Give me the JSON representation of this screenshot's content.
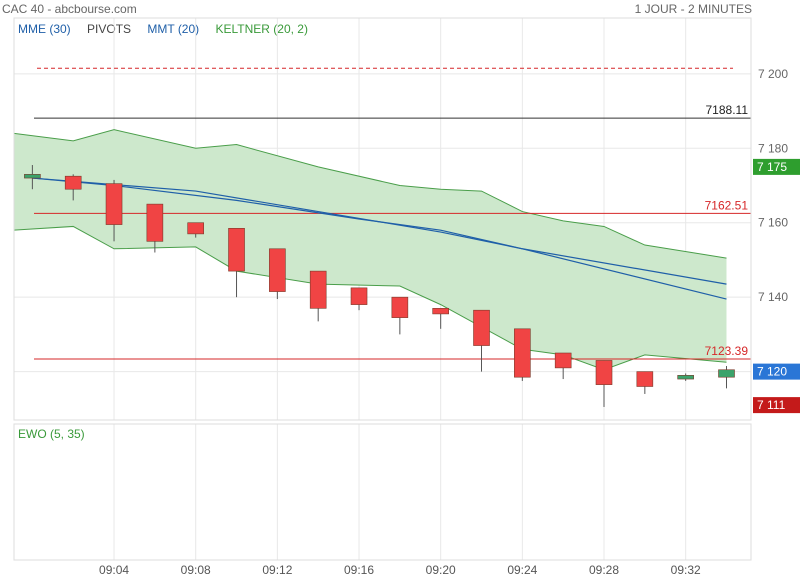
{
  "header": {
    "title": "CAC 40 - abcbourse.com",
    "period": "1 JOUR - 2 MINUTES"
  },
  "legend": [
    {
      "label": "MME (30)",
      "color": "#1f5fa8"
    },
    {
      "label": "PIVOTS",
      "color": "#444444"
    },
    {
      "label": "MMT (20)",
      "color": "#1f5fa8"
    },
    {
      "label": "KELTNER (20, 2)",
      "color": "#3a9a3a"
    }
  ],
  "indicator": {
    "label": "EWO (5, 35)",
    "color": "#3a9a3a"
  },
  "chart_data": {
    "type": "candlestick",
    "y_ticks": [
      7120,
      7140,
      7160,
      7180,
      7200
    ],
    "y_tick_labels": [
      "7 120",
      "7 140",
      "7 160",
      "7 180",
      "7 200"
    ],
    "ylim": [
      7107,
      7215
    ],
    "x_ticks": [
      "09:04",
      "09:08",
      "09:12",
      "09:16",
      "09:20",
      "09:24",
      "09:28",
      "09:32"
    ],
    "x_tick_minutes": [
      4,
      8,
      12,
      16,
      20,
      24,
      28,
      32
    ],
    "xlim_minutes": [
      -0.9,
      35.2
    ],
    "candles": [
      {
        "t": 0,
        "open": 7172.0,
        "high": 7175.5,
        "low": 7169.0,
        "close": 7173.0
      },
      {
        "t": 2,
        "open": 7172.5,
        "high": 7173.0,
        "low": 7166.0,
        "close": 7169.0
      },
      {
        "t": 4,
        "open": 7170.5,
        "high": 7171.5,
        "low": 7155.0,
        "close": 7159.5
      },
      {
        "t": 6,
        "open": 7165.0,
        "high": 7165.0,
        "low": 7152.0,
        "close": 7155.0
      },
      {
        "t": 8,
        "open": 7160.0,
        "high": 7160.0,
        "low": 7156.0,
        "close": 7157.0
      },
      {
        "t": 10,
        "open": 7158.5,
        "high": 7158.5,
        "low": 7140.0,
        "close": 7147.0
      },
      {
        "t": 12,
        "open": 7153.0,
        "high": 7153.0,
        "low": 7139.5,
        "close": 7141.5
      },
      {
        "t": 14,
        "open": 7147.0,
        "high": 7147.0,
        "low": 7133.5,
        "close": 7137.0
      },
      {
        "t": 16,
        "open": 7142.5,
        "high": 7142.5,
        "low": 7136.5,
        "close": 7138.0
      },
      {
        "t": 18,
        "open": 7140.0,
        "high": 7140.0,
        "low": 7130.0,
        "close": 7134.5
      },
      {
        "t": 20,
        "open": 7137.0,
        "high": 7137.0,
        "low": 7131.5,
        "close": 7135.5
      },
      {
        "t": 22,
        "open": 7136.5,
        "high": 7136.5,
        "low": 7120.0,
        "close": 7127.0
      },
      {
        "t": 24,
        "open": 7131.5,
        "high": 7131.5,
        "low": 7117.5,
        "close": 7118.5
      },
      {
        "t": 26,
        "open": 7125.0,
        "high": 7125.0,
        "low": 7118.0,
        "close": 7121.0
      },
      {
        "t": 28,
        "open": 7123.0,
        "high": 7123.0,
        "low": 7110.5,
        "close": 7116.5
      },
      {
        "t": 30,
        "open": 7120.0,
        "high": 7120.0,
        "low": 7114.0,
        "close": 7116.0
      },
      {
        "t": 32,
        "open": 7118.0,
        "high": 7119.5,
        "low": 7117.5,
        "close": 7119.0
      },
      {
        "t": 34,
        "open": 7118.5,
        "high": 7121.5,
        "low": 7115.5,
        "close": 7120.5
      }
    ],
    "keltner": {
      "t": [
        -0.9,
        2,
        4,
        8,
        10,
        14,
        18,
        20,
        22,
        24,
        26,
        28,
        30,
        34
      ],
      "upper": [
        7184,
        7182,
        7185,
        7180,
        7181,
        7175,
        7170,
        7169,
        7168.5,
        7163,
        7160.5,
        7159,
        7154,
        7150.5
      ],
      "lower": [
        7158,
        7159,
        7153,
        7153.5,
        7147,
        7143.5,
        7143,
        7138,
        7132,
        7126,
        7124.5,
        7120.5,
        7124.5,
        7122.5
      ]
    },
    "mme30": {
      "t": [
        0,
        8,
        14,
        20,
        24,
        34
      ],
      "values": [
        7172,
        7168.5,
        7163,
        7157.5,
        7153,
        7143.5
      ]
    },
    "mmt20": {
      "t": [
        0,
        4,
        10,
        16,
        20,
        24,
        34
      ],
      "values": [
        7172,
        7170,
        7166,
        7161,
        7158,
        7153,
        7139.5
      ]
    },
    "pivots": [
      {
        "value": 7201.5,
        "label": "",
        "color": "#d62728",
        "style": "dashed"
      },
      {
        "value": 7188.11,
        "label": "7188.11",
        "color": "#333333",
        "style": "solid"
      },
      {
        "value": 7162.51,
        "label": "7162.51",
        "color": "#d62728",
        "style": "solid"
      },
      {
        "value": 7123.39,
        "label": "7123.39",
        "color": "#d62728",
        "style": "solid"
      }
    ],
    "price_badges": [
      {
        "value": 7175,
        "label": "7 175",
        "color": "#2e9e2e"
      },
      {
        "value": 7120,
        "label": "7 120",
        "color": "#2a76d6"
      },
      {
        "value": 7111,
        "label": "7 111",
        "color": "#c41a1a"
      }
    ]
  },
  "colors": {
    "candle_down": "#f04444",
    "candle_up": "#3ba36b",
    "keltner_fill": "#cde8cc",
    "keltner_line": "#4a9e4a",
    "grid": "#e8e8e8"
  }
}
